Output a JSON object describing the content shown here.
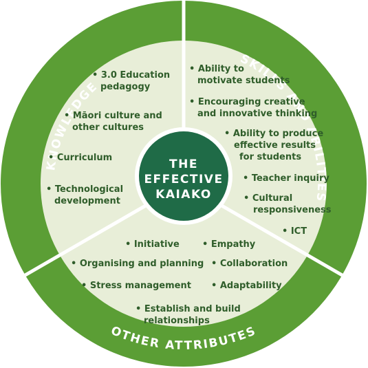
{
  "colors": {
    "ring": "#5b9e35",
    "inner": "#e8eed8",
    "center": "#1f6b47",
    "text": "#2f5d2a"
  },
  "center": {
    "line1": "THE",
    "line2": "EFFECTIVE",
    "line3": "KAIAKO"
  },
  "sections": {
    "knowledge": {
      "title": "KNOWLEDGE",
      "items": [
        [
          "• 3.0 Education",
          "pedagogy"
        ],
        [
          "• Māori culture and",
          "other cultures"
        ],
        [
          "• Curriculum"
        ],
        [
          "• Technological",
          "development"
        ]
      ]
    },
    "skills": {
      "title": "SKILLS AND ABILITIES",
      "items": [
        [
          "• Ability to",
          "motivate students"
        ],
        [
          "• Encouraging creative",
          "and innovative thinking"
        ],
        [
          "• Ability to produce",
          "effective results",
          "for students"
        ],
        [
          "• Teacher inquiry"
        ],
        [
          "• Cultural",
          "responsiveness"
        ],
        [
          "• ICT"
        ]
      ]
    },
    "other": {
      "title": "OTHER ATTRIBUTES",
      "items": [
        [
          "• Initiative"
        ],
        [
          "• Empathy"
        ],
        [
          "• Organising and planning"
        ],
        [
          "• Collaboration"
        ],
        [
          "• Stress management"
        ],
        [
          "• Adaptability"
        ],
        [
          "• Establish and build",
          "relationships"
        ]
      ]
    }
  }
}
